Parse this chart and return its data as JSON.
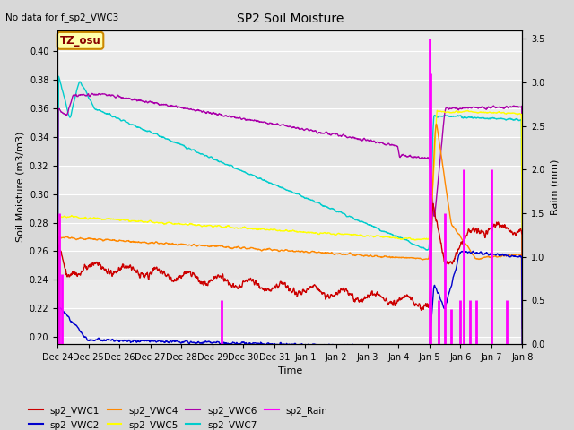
{
  "title": "SP2 Soil Moisture",
  "subtitle": "No data for f_sp2_VWC3",
  "ylabel_left": "Soil Moisture (m3/m3)",
  "ylabel_right": "Raim (mm)",
  "xlabel": "Time",
  "ylim_left": [
    0.195,
    0.415
  ],
  "ylim_right": [
    0.0,
    3.6
  ],
  "yticks_left": [
    0.2,
    0.22,
    0.24,
    0.26,
    0.28,
    0.3,
    0.32,
    0.34,
    0.36,
    0.38,
    0.4
  ],
  "yticks_right": [
    0.0,
    0.5,
    1.0,
    1.5,
    2.0,
    2.5,
    3.0,
    3.5
  ],
  "tz_label": "TZ_osu",
  "series_colors": {
    "sp2_VWC1": "#cc0000",
    "sp2_VWC2": "#0000cc",
    "sp2_VWC4": "#ff8800",
    "sp2_VWC5": "#ffff00",
    "sp2_VWC6": "#aa00aa",
    "sp2_VWC7": "#00cccc",
    "sp2_Rain": "#ff00ff"
  },
  "background_color": "#d8d8d8",
  "plot_bg_color": "#ebebeb",
  "grid_color": "#ffffff",
  "tick_labels": [
    "Dec 24",
    "Dec 25",
    "Dec 26",
    "Dec 27",
    "Dec 28",
    "Dec 29",
    "Dec 30",
    "Dec 31",
    "Jan 1",
    "Jan 2",
    "Jan 3",
    "Jan 4",
    "Jan 5",
    "Jan 6",
    "Jan 7",
    "Jan 8"
  ]
}
